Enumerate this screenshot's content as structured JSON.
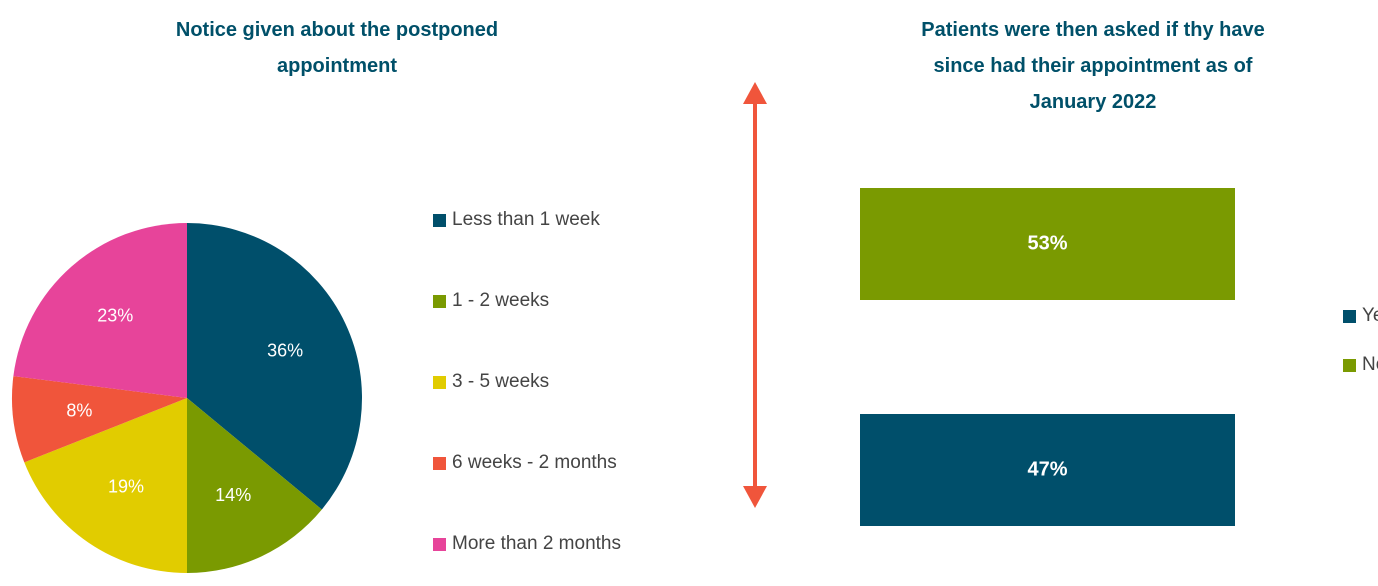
{
  "chart_data": [
    {
      "type": "pie",
      "title": "Notice given about the postponed appointment",
      "categories": [
        "Less than 1 week",
        "1 - 2 weeks",
        "3 - 5 weeks",
        "6 weeks - 2 months",
        "More than 2 months"
      ],
      "values": [
        36,
        14,
        19,
        8,
        23
      ],
      "value_labels": [
        "36%",
        "14%",
        "19%",
        "8%",
        "23%"
      ],
      "colors": [
        "#004f6b",
        "#7a9a01",
        "#e1cc00",
        "#f0553b",
        "#e7449a"
      ],
      "legend": "right"
    },
    {
      "type": "bar",
      "orientation": "horizontal",
      "stacked_percent": true,
      "title": "Patients were then asked if thy have since had their appointment as of January 2022",
      "categories": [
        null,
        null
      ],
      "series": [
        {
          "name": "Yes",
          "color": "#004f6b",
          "values": [
            47,
            null
          ],
          "value_labels": [
            "47%",
            null
          ]
        },
        {
          "name": "No",
          "color": "#7a9a01",
          "values": [
            null,
            53
          ],
          "value_labels": [
            null,
            "53%"
          ]
        }
      ],
      "legend": "right"
    }
  ]
}
